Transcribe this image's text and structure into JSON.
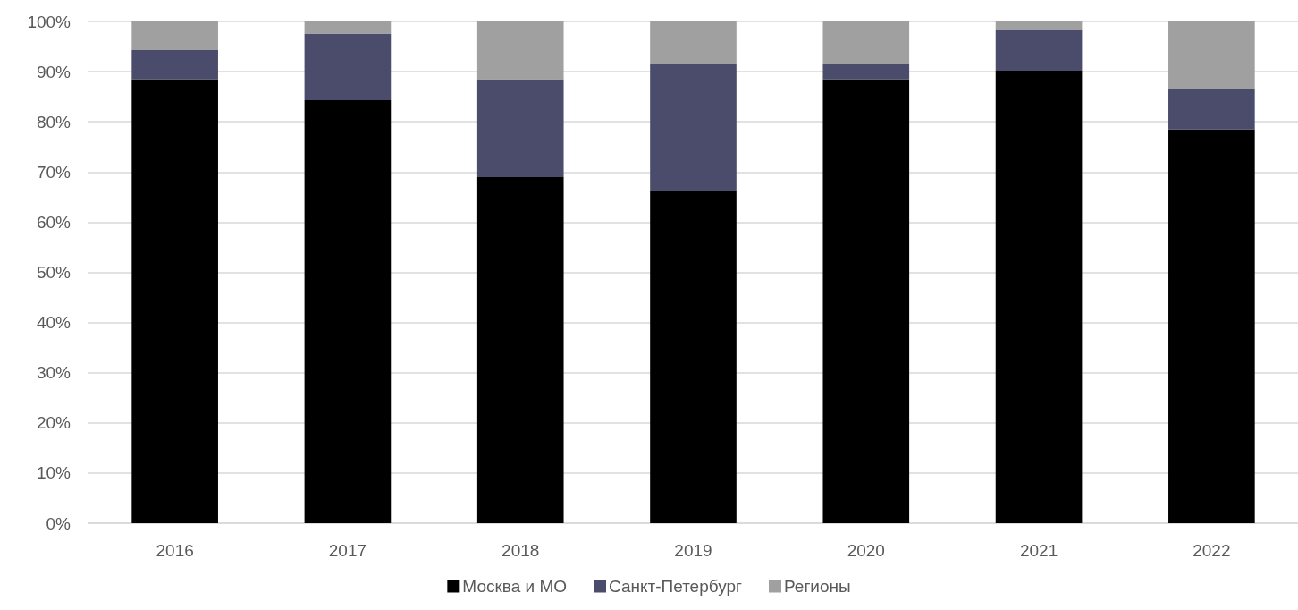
{
  "chart_data": {
    "type": "bar",
    "stacked": true,
    "categories": [
      "2016",
      "2017",
      "2018",
      "2019",
      "2020",
      "2021",
      "2022"
    ],
    "series": [
      {
        "name": "Москва и МО",
        "color": "#000000",
        "values": [
          88.5,
          84.3,
          69.0,
          66.3,
          88.5,
          90.2,
          78.5
        ]
      },
      {
        "name": "Санкт-Петербург",
        "color": "#4b4c6b",
        "values": [
          5.8,
          13.3,
          19.5,
          25.3,
          3.0,
          8.1,
          8.0
        ]
      },
      {
        "name": "Регионы",
        "color": "#a0a0a0",
        "values": [
          5.7,
          2.4,
          11.5,
          8.4,
          8.5,
          1.7,
          13.5
        ]
      }
    ],
    "ylim": [
      0,
      100
    ],
    "yticks": [
      {
        "value": 0,
        "label": "0%"
      },
      {
        "value": 10,
        "label": "10%"
      },
      {
        "value": 20,
        "label": "20%"
      },
      {
        "value": 30,
        "label": "30%"
      },
      {
        "value": 40,
        "label": "40%"
      },
      {
        "value": 50,
        "label": "50%"
      },
      {
        "value": 60,
        "label": "60%"
      },
      {
        "value": 70,
        "label": "70%"
      },
      {
        "value": 80,
        "label": "80%"
      },
      {
        "value": 90,
        "label": "90%"
      },
      {
        "value": 100,
        "label": "100%"
      }
    ],
    "grid": "y",
    "legend": "bottom"
  }
}
